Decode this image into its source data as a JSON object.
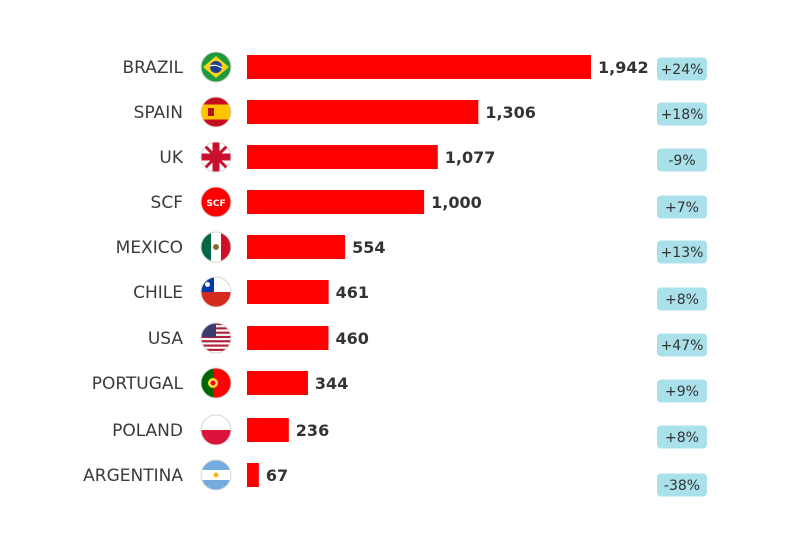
{
  "chart_data": {
    "type": "bar",
    "orientation": "horizontal",
    "title": "",
    "xlabel": "",
    "ylabel": "",
    "categories": [
      "BRAZIL",
      "SPAIN",
      "UK",
      "SCF",
      "MEXICO",
      "CHILE",
      "USA",
      "PORTUGAL",
      "POLAND",
      "ARGENTINA"
    ],
    "values": [
      1942,
      1306,
      1077,
      1000,
      554,
      461,
      460,
      344,
      236,
      67
    ],
    "value_labels": [
      "1,942",
      "1,306",
      "1,077",
      "1,000",
      "554",
      "461",
      "460",
      "344",
      "236",
      "67"
    ],
    "changes": [
      "+24%",
      "+18%",
      "-9%",
      "+7%",
      "+13%",
      "+8%",
      "+47%",
      "+9%",
      "+8%",
      "-38%"
    ],
    "icons": [
      "brazil-flag-icon",
      "spain-flag-icon",
      "uk-flag-icon",
      "scf-logo-icon",
      "mexico-flag-icon",
      "chile-flag-icon",
      "usa-flag-icon",
      "portugal-flag-icon",
      "poland-flag-icon",
      "argentina-flag-icon"
    ],
    "scf_icon_text": "SCF",
    "xlim": [
      0,
      1942
    ],
    "grid": false,
    "legend": "none",
    "colors": {
      "bar": "#ff0000",
      "badge": "#a9e0ea",
      "label": "#3a3a3a"
    }
  }
}
